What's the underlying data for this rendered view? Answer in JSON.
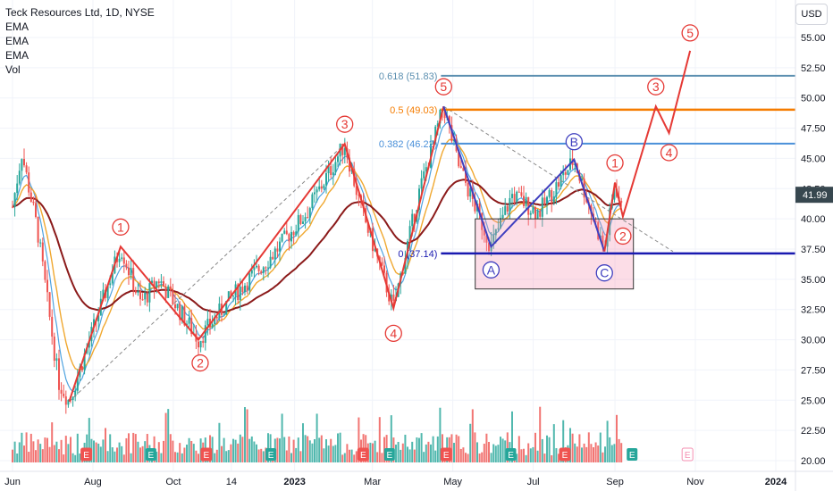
{
  "legend": {
    "title": "Teck Resources Ltd, 1D, NYSE",
    "indicators": [
      "EMA",
      "EMA",
      "EMA",
      "Vol"
    ]
  },
  "currency": "USD",
  "chart_data": {
    "type": "candlestick",
    "x_ticks": [
      "Jun",
      "Aug",
      "Oct",
      "14",
      "2023",
      "Mar",
      "May",
      "Jul",
      "Sep",
      "Nov",
      "2024"
    ],
    "y_ticks": [
      "55.00",
      "52.50",
      "50.00",
      "47.50",
      "45.00",
      "42.50",
      "40.00",
      "37.50",
      "35.00",
      "32.50",
      "30.00",
      "27.50",
      "25.00",
      "22.50",
      "20.00"
    ],
    "ylim": [
      19.6,
      56.5
    ],
    "last_price": "41.99",
    "colors": {
      "up": "#26a69a",
      "down": "#ef5350",
      "ema_fast": "#4fa3e0",
      "ema_mid": "#f0a830",
      "ema_slow": "#8b1a1a",
      "wave": "#e53935",
      "corrective": "#3f3fbf"
    },
    "fib_levels": [
      {
        "label": "0.618 (51.83)",
        "value": 51.83,
        "color": "#5b8fb0"
      },
      {
        "label": "0.5 (49.03)",
        "value": 49.03,
        "color": "#f57c00"
      },
      {
        "label": "0.382 (46.22)",
        "value": 46.22,
        "color": "#4a90d9"
      },
      {
        "label": "0 (37.14)",
        "value": 37.14,
        "color": "#1a1ab0"
      }
    ],
    "impulse_wave": {
      "points": [
        [
          "2022-07-14",
          24.9
        ],
        [
          "2022-08-22",
          37.7
        ],
        [
          "2022-10-20",
          30.0
        ],
        [
          "2023-02-08",
          46.2
        ],
        [
          "2023-03-17",
          32.6
        ],
        [
          "2023-04-24",
          49.3
        ]
      ],
      "labels": [
        "1",
        "2",
        "3",
        "4",
        "5"
      ]
    },
    "corrective_wave": {
      "points": [
        [
          "2023-04-24",
          49.3
        ],
        [
          "2023-05-30",
          37.7
        ],
        [
          "2023-08-01",
          44.9
        ],
        [
          "2023-08-24",
          37.3
        ]
      ],
      "labels": [
        "A",
        "B",
        "C"
      ]
    },
    "projected_wave": {
      "points": [
        [
          "2023-08-24",
          37.3
        ],
        [
          "2023-09-01",
          43.0
        ],
        [
          "2023-09-07",
          40.2
        ],
        [
          "2023-10-02",
          49.3
        ],
        [
          "2023-10-12",
          47.1
        ],
        [
          "2023-10-28",
          53.9
        ]
      ],
      "labels": [
        "1",
        "2",
        "3",
        "4",
        "5"
      ]
    },
    "support_box": {
      "from": "2023-05-18",
      "to": "2023-09-15",
      "top": 40.0,
      "bottom": 34.2
    },
    "earnings_markers": [
      "E",
      "E",
      "E",
      "E",
      "E",
      "E",
      "E"
    ],
    "dividend_markers": [
      "E",
      "E",
      "E",
      "E"
    ]
  }
}
